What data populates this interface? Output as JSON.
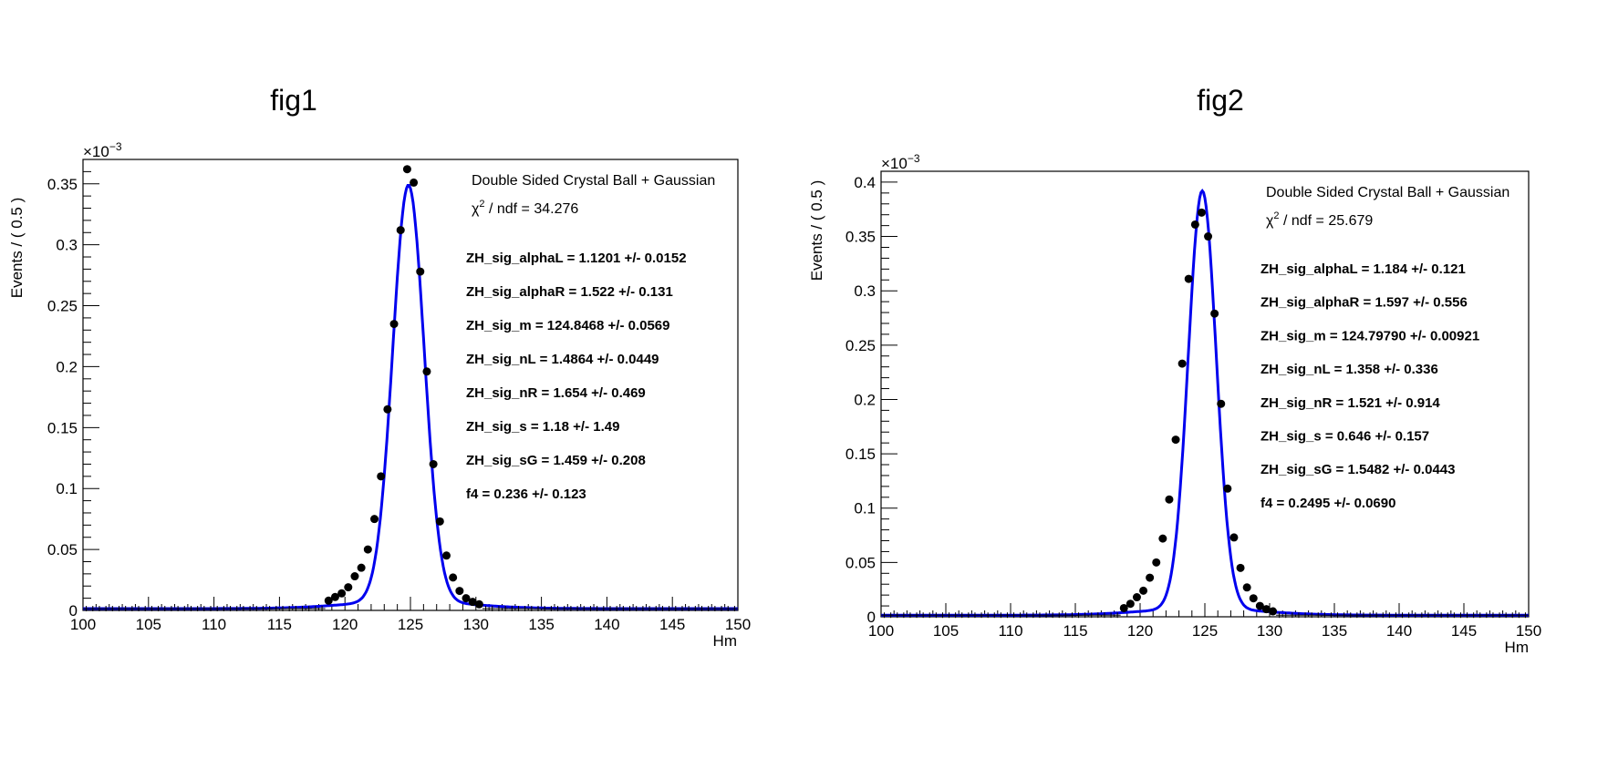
{
  "chart_data": [
    {
      "type": "scatter",
      "title": "fig1",
      "xlabel": "Hm",
      "ylabel": "Events / ( 0.5 )",
      "exponent_label": "×10",
      "exponent_power": "−3",
      "xlim": [
        100,
        150
      ],
      "ylim": [
        0,
        0.37
      ],
      "x_ticks": [
        100,
        105,
        110,
        115,
        120,
        125,
        130,
        135,
        140,
        145,
        150
      ],
      "x_tick_labels": [
        "100",
        "105",
        "110",
        "115",
        "120",
        "125",
        "130",
        "135",
        "140",
        "145",
        "150"
      ],
      "y_ticks": [
        0,
        0.05,
        0.1,
        0.15,
        0.2,
        0.25,
        0.3,
        0.35
      ],
      "y_tick_labels": [
        "0",
        "0.05",
        "0.1",
        "0.15",
        "0.2",
        "0.25",
        "0.3",
        "0.35"
      ],
      "fit_name": "Double Sided Crystal Ball + Gaussian",
      "chi2_label": "χ",
      "chi2_value": " / ndf = 34.276",
      "params": [
        {
          "name": "ZH_sig_alphaL = ",
          "value": "1.1201 +/- 0.0152"
        },
        {
          "name": "ZH_sig_alphaR = ",
          "value": "1.522 +/- 0.131"
        },
        {
          "name": "ZH_sig_m = ",
          "value": "124.8468 +/- 0.0569"
        },
        {
          "name": "ZH_sig_nL = ",
          "value": "1.4864 +/- 0.0449"
        },
        {
          "name": "ZH_sig_nR = ",
          "value": "1.654 +/- 0.469"
        },
        {
          "name": "ZH_sig_s = ",
          "value": "1.18 +/- 1.49"
        },
        {
          "name": "ZH_sig_sG = ",
          "value": "1.459 +/- 0.208"
        },
        {
          "name": "f4 = ",
          "value": "0.236 +/- 0.123"
        }
      ],
      "points": [
        [
          118.75,
          0.008
        ],
        [
          119.25,
          0.011
        ],
        [
          119.75,
          0.014
        ],
        [
          120.25,
          0.019
        ],
        [
          120.75,
          0.028
        ],
        [
          121.25,
          0.035
        ],
        [
          121.75,
          0.05
        ],
        [
          122.25,
          0.075
        ],
        [
          122.75,
          0.11
        ],
        [
          123.25,
          0.165
        ],
        [
          123.75,
          0.235
        ],
        [
          124.25,
          0.312
        ],
        [
          124.75,
          0.362
        ],
        [
          125.25,
          0.351
        ],
        [
          125.75,
          0.278
        ],
        [
          126.25,
          0.196
        ],
        [
          126.75,
          0.12
        ],
        [
          127.25,
          0.073
        ],
        [
          127.75,
          0.045
        ],
        [
          128.25,
          0.027
        ],
        [
          128.75,
          0.016
        ],
        [
          129.25,
          0.01
        ],
        [
          129.75,
          0.007
        ],
        [
          130.25,
          0.005
        ]
      ],
      "baseline": 0.0015,
      "fit_peak": 0.343,
      "fit_mean": 124.85,
      "fit_sigma": 1.2,
      "colors": {
        "fit": "#0000ee",
        "points": "#000000"
      }
    },
    {
      "type": "scatter",
      "title": "fig2",
      "xlabel": "Hm",
      "ylabel": "Events / ( 0.5 )",
      "exponent_label": "×10",
      "exponent_power": "−3",
      "xlim": [
        100,
        150
      ],
      "ylim": [
        0,
        0.41
      ],
      "x_ticks": [
        100,
        105,
        110,
        115,
        120,
        125,
        130,
        135,
        140,
        145,
        150
      ],
      "x_tick_labels": [
        "100",
        "105",
        "110",
        "115",
        "120",
        "125",
        "130",
        "135",
        "140",
        "145",
        "150"
      ],
      "y_ticks": [
        0,
        0.05,
        0.1,
        0.15,
        0.2,
        0.25,
        0.3,
        0.35,
        0.4
      ],
      "y_tick_labels": [
        "0",
        "0.05",
        "0.1",
        "0.15",
        "0.2",
        "0.25",
        "0.3",
        "0.35",
        "0.4"
      ],
      "fit_name": "Double Sided Crystal Ball + Gaussian",
      "chi2_label": "χ",
      "chi2_value": " / ndf = 25.679",
      "params": [
        {
          "name": "ZH_sig_alphaL = ",
          "value": "1.184 +/- 0.121"
        },
        {
          "name": "ZH_sig_alphaR = ",
          "value": "1.597 +/- 0.556"
        },
        {
          "name": "ZH_sig_m = ",
          "value": "124.79790 +/- 0.00921"
        },
        {
          "name": "ZH_sig_nL = ",
          "value": "1.358 +/- 0.336"
        },
        {
          "name": "ZH_sig_nR = ",
          "value": "1.521 +/- 0.914"
        },
        {
          "name": "ZH_sig_s = ",
          "value": "0.646 +/- 0.157"
        },
        {
          "name": "ZH_sig_sG = ",
          "value": "1.5482 +/- 0.0443"
        },
        {
          "name": "f4 = ",
          "value": "0.2495 +/- 0.0690"
        }
      ],
      "points": [
        [
          118.75,
          0.008
        ],
        [
          119.25,
          0.012
        ],
        [
          119.75,
          0.018
        ],
        [
          120.25,
          0.024
        ],
        [
          120.75,
          0.036
        ],
        [
          121.25,
          0.05
        ],
        [
          121.75,
          0.072
        ],
        [
          122.25,
          0.108
        ],
        [
          122.75,
          0.163
        ],
        [
          123.25,
          0.233
        ],
        [
          123.75,
          0.311
        ],
        [
          124.25,
          0.361
        ],
        [
          124.75,
          0.372
        ],
        [
          125.25,
          0.35
        ],
        [
          125.75,
          0.279
        ],
        [
          126.25,
          0.196
        ],
        [
          126.75,
          0.118
        ],
        [
          127.25,
          0.073
        ],
        [
          127.75,
          0.045
        ],
        [
          128.25,
          0.027
        ],
        [
          128.75,
          0.017
        ],
        [
          129.25,
          0.01
        ],
        [
          129.75,
          0.007
        ],
        [
          130.25,
          0.005
        ]
      ],
      "baseline": 0.0015,
      "fit_peak": 0.386,
      "fit_mean": 124.8,
      "fit_sigma": 1.08,
      "colors": {
        "fit": "#0000ee",
        "points": "#000000"
      }
    }
  ]
}
